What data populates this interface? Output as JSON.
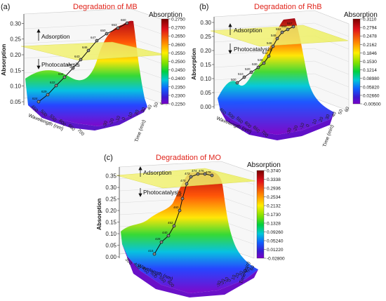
{
  "figure": {
    "panels": [
      "(a)",
      "(b)",
      "(c)"
    ]
  },
  "chart_data": [
    {
      "type": "area",
      "panel": "(a)",
      "title": "Degradation of MB",
      "xlabel": "Wavelength (nm)",
      "ylabel": "Absorption",
      "zlabel": "Time (min)",
      "xticks": [
        "450",
        "500",
        "550",
        "600",
        "650",
        "700"
      ],
      "yticks": [
        "0.05",
        "0.10",
        "0.15",
        "0.20",
        "0.25",
        "0.30"
      ],
      "zticks": [
        "-30",
        "-20",
        "-10",
        "0",
        "10",
        "20",
        "30",
        "40",
        "50",
        "60"
      ],
      "ylim": [
        0.05,
        0.33
      ],
      "annotations": [
        "Adsorption",
        "Photocatalysis"
      ],
      "colorbar": {
        "title": "Absorption",
        "ticks": [
          "0.2750",
          "0.2700",
          "0.2650",
          "0.2600",
          "0.2550",
          "0.2500",
          "0.2450",
          "0.2400",
          "0.2350",
          "0.2300",
          "0.2250"
        ]
      },
      "series": [
        {
          "x": [
            624,
            629,
            632,
            634,
            638,
            643,
            646,
            647,
            650,
            653,
            660
          ],
          "labels": [
            "624",
            "629",
            "632",
            "634",
            "638",
            "643",
            "646",
            "647",
            "650",
            "653",
            "660"
          ],
          "y": [
            0.075,
            0.09,
            0.11,
            0.145,
            0.185,
            0.215,
            0.245,
            0.265,
            0.28,
            0.29,
            0.305
          ]
        }
      ]
    },
    {
      "type": "area",
      "panel": "(b)",
      "title": "Degradation of RhB",
      "xlabel": "Wavelength (nm)",
      "ylabel": "Absorption",
      "zlabel": "Time (min)",
      "xticks": [
        "450",
        "500",
        "550",
        "600",
        "650",
        "700"
      ],
      "yticks": [
        "0.00",
        "0.05",
        "0.10",
        "0.15",
        "0.20",
        "0.25",
        "0.30"
      ],
      "zticks": [
        "-30",
        "-20",
        "-10",
        "0",
        "10",
        "20",
        "30",
        "40",
        "50",
        "60"
      ],
      "ylim": [
        0,
        0.32
      ],
      "annotations": [
        "Adsorption",
        "Photocatalysis"
      ],
      "colorbar": {
        "title": "Absorption",
        "ticks": [
          "0.3110",
          "0.2794",
          "0.2478",
          "0.2162",
          "0.1846",
          "0.1530",
          "0.1214",
          "0.08980",
          "0.05820",
          "0.02660",
          "-0.00500"
        ]
      },
      "series": [
        {
          "x": [
            500,
            510,
            520,
            530,
            538,
            542,
            546,
            549,
            552,
            554,
            557
          ],
          "labels": [
            "500",
            "510",
            "520",
            "530",
            "538",
            "542",
            "546",
            "549",
            "552",
            "554",
            "557"
          ],
          "y": [
            0.08,
            0.1,
            0.125,
            0.145,
            0.165,
            0.2,
            0.235,
            0.265,
            0.29,
            0.3,
            0.305
          ]
        }
      ]
    },
    {
      "type": "area",
      "panel": "(c)",
      "title": "Degradation of MO",
      "xlabel": "Wavelength (nm)",
      "ylabel": "Absorption",
      "zlabel": "Time (min)",
      "xticks": [
        "350",
        "400",
        "450",
        "500",
        "550",
        "600"
      ],
      "yticks": [
        "0.00",
        "0.05",
        "0.10",
        "0.15",
        "0.20",
        "0.25",
        "0.30",
        "0.35"
      ],
      "zticks": [
        "-30",
        "-20",
        "-10",
        "0",
        "10",
        "20",
        "30",
        "40",
        "50",
        "60"
      ],
      "ylim": [
        0,
        0.37
      ],
      "annotations": [
        "Adsorption",
        "Photocatalysis"
      ],
      "colorbar": {
        "title": "Absorption",
        "ticks": [
          "0.3740",
          "0.3338",
          "0.2936",
          "0.2534",
          "0.2132",
          "0.1730",
          "0.1328",
          "0.09260",
          "0.05240",
          "0.01220",
          "-0.02800"
        ]
      },
      "series": [
        {
          "x": [
            415,
            428,
            440,
            452,
            460,
            465,
            470,
            472,
            474,
            476,
            478
          ],
          "labels": [
            "415",
            "428",
            "440",
            "452",
            "460",
            "465",
            "470",
            "472",
            "474",
            "476",
            "478"
          ],
          "y": [
            0.02,
            0.05,
            0.09,
            0.13,
            0.2,
            0.26,
            0.32,
            0.355,
            0.36,
            0.36,
            0.36
          ]
        }
      ]
    }
  ]
}
